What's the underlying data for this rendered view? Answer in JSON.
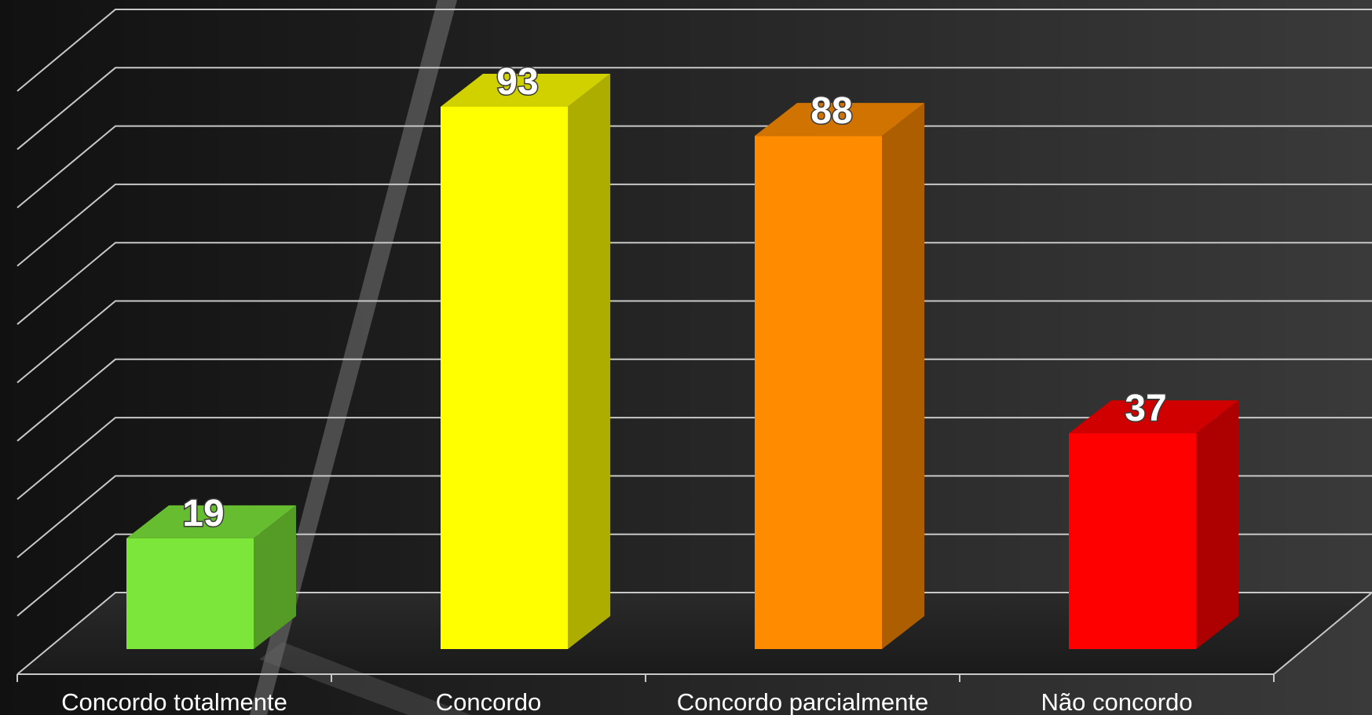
{
  "chart_data": {
    "type": "bar",
    "categories": [
      "Concordo totalmente",
      "Concordo",
      "Concordo parcialmente",
      "Não concordo"
    ],
    "values": [
      19,
      93,
      88,
      37
    ],
    "colors": [
      "#7de63a",
      "#ffff00",
      "#ff8c00",
      "#ff0000"
    ],
    "ylim": [
      0,
      100
    ],
    "grid": true,
    "style": "3d-column",
    "data_labels": true
  }
}
